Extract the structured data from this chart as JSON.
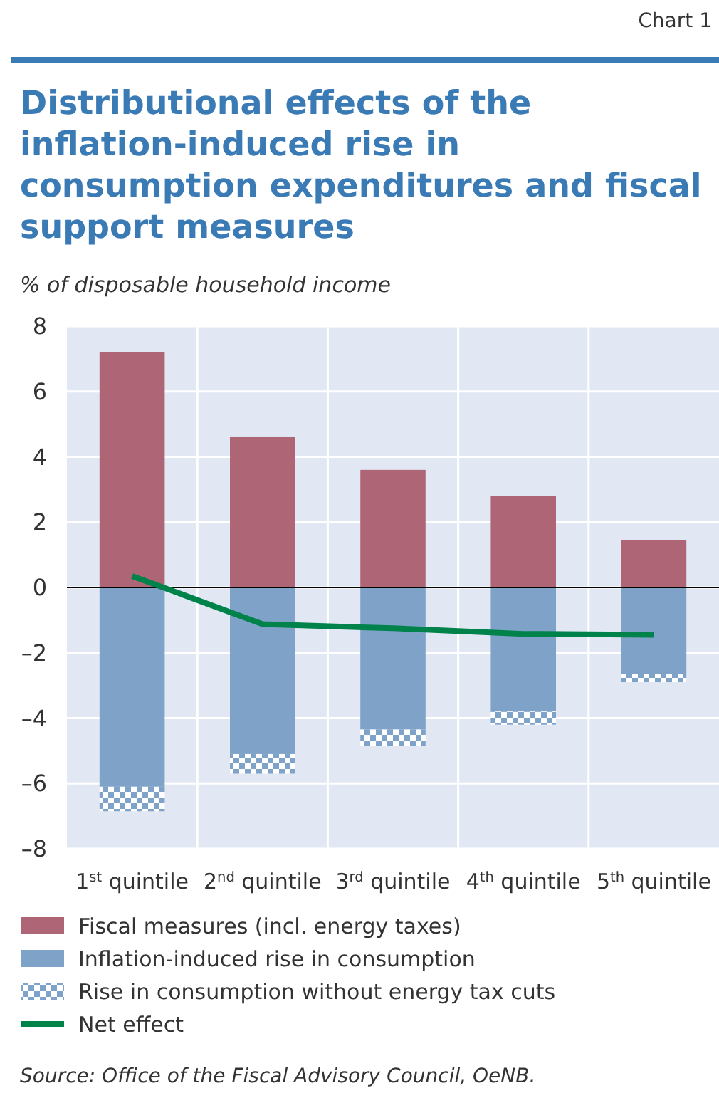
{
  "chart_data": {
    "type": "bar",
    "title": "Distributional effects of the inflation-induced rise in consumption expenditures and fiscal support measures",
    "ylabel": "% of disposable household income",
    "categories": [
      "1$^{st}$ quintile",
      "2$^{nd}$ quintile",
      "3$^{rd}$ quintile",
      "4$^{th}$ quintile",
      "5$^{th}$ quintile"
    ],
    "stacked": true,
    "series": [
      {
        "name": "Fiscal measures (incl. energy taxes)",
        "color": "#ae6677",
        "values": [
          7.2,
          4.6,
          3.6,
          2.8,
          1.45
        ]
      },
      {
        "name": "Inflation-induced rise in consumption",
        "color": "#7fa2c8",
        "values": [
          -6.1,
          -5.1,
          -4.35,
          -3.8,
          -2.65
        ]
      },
      {
        "name": "Rise in consumption without energy tax cuts",
        "color": "#7fa2c8",
        "values": [
          -0.75,
          -0.6,
          -0.5,
          -0.4,
          -0.25
        ]
      },
      {
        "name": "Net effect",
        "type": "line",
        "color": "#00834a",
        "values": [
          0.35,
          -1.12,
          -1.25,
          -1.42,
          -1.45
        ]
      }
    ],
    "ylim": [
      -8,
      8
    ],
    "yticks": [
      {
        "value": -8,
        "label": "–8"
      },
      {
        "value": -6,
        "label": "–6"
      },
      {
        "value": -4,
        "label": "–4"
      },
      {
        "value": -2,
        "label": "–2"
      },
      0,
      2,
      4,
      6,
      8
    ],
    "grid": true,
    "legend": "bottom left",
    "marker": "none",
    "annotations": [
      "Chart 1",
      "Source: Office of the Fiscal Advisory Council, OeNB."
    ]
  }
}
